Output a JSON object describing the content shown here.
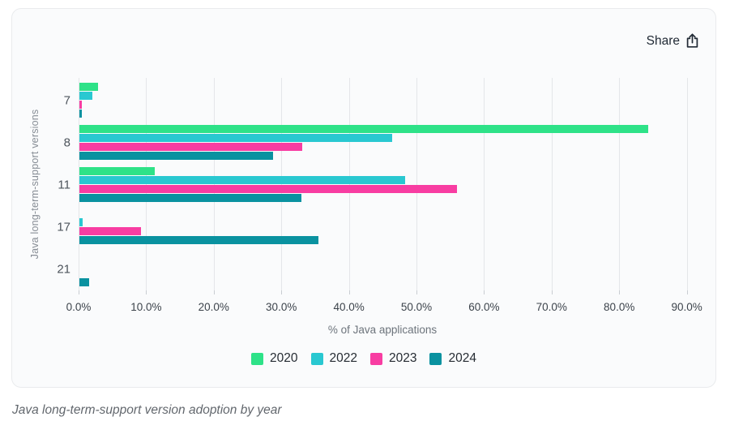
{
  "card": {
    "share_label": "Share"
  },
  "caption": "Java long-term-support version adoption by year",
  "chart_data": {
    "type": "bar",
    "orientation": "horizontal",
    "title": "",
    "categories": [
      "7",
      "8",
      "11",
      "17",
      "21"
    ],
    "series": [
      {
        "name": "2020",
        "color": "#2ee288",
        "values": [
          2.7,
          84.2,
          11.1,
          0,
          0
        ]
      },
      {
        "name": "2022",
        "color": "#29c8d1",
        "values": [
          1.9,
          46.3,
          48.2,
          0.5,
          0
        ]
      },
      {
        "name": "2023",
        "color": "#f83da2",
        "values": [
          0.4,
          33.0,
          55.9,
          9.1,
          0
        ]
      },
      {
        "name": "2024",
        "color": "#0a92a0",
        "values": [
          0.3,
          28.7,
          32.8,
          35.4,
          1.4
        ]
      }
    ],
    "xlabel": "% of Java applications",
    "ylabel": "Java long-term-support versions",
    "xlim": [
      0,
      90
    ],
    "xticks": [
      "0.0%",
      "10.0%",
      "20.0%",
      "30.0%",
      "40.0%",
      "50.0%",
      "60.0%",
      "70.0%",
      "80.0%",
      "90.0%"
    ],
    "grid": true,
    "legend_position": "bottom"
  }
}
